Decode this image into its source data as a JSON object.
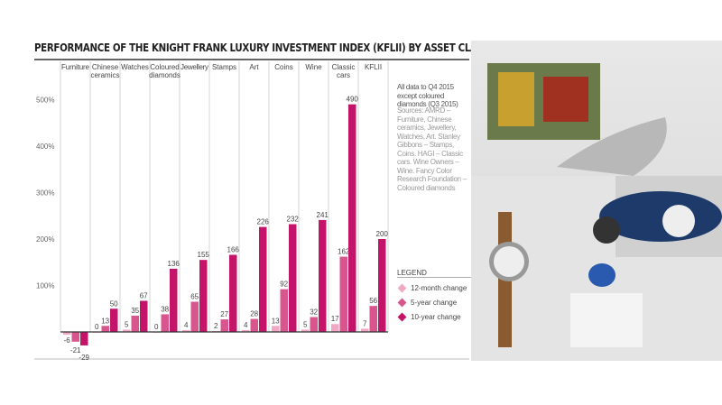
{
  "chart_data": {
    "type": "bar",
    "title": "PERFORMANCE OF THE KNIGHT FRANK LUXURY INVESTMENT INDEX (KFLII) BY ASSET CLASS",
    "categories": [
      "Furniture",
      "Chinese ceramics",
      "Watches",
      "Coloured diamonds",
      "Jewellery",
      "Stamps",
      "Art",
      "Coins",
      "Wine",
      "Classic cars",
      "KFLII"
    ],
    "series": [
      {
        "name": "12-month change",
        "color": "#f0a8c4",
        "values": [
          -6,
          0,
          5,
          0,
          4,
          2,
          4,
          13,
          5,
          17,
          7
        ]
      },
      {
        "name": "5-year change",
        "color": "#d9558e",
        "values": [
          -21,
          13,
          35,
          38,
          65,
          27,
          28,
          92,
          32,
          162,
          56
        ]
      },
      {
        "name": "10-year change",
        "color": "#c4146a",
        "values": [
          -29,
          50,
          67,
          136,
          155,
          166,
          226,
          232,
          241,
          490,
          200
        ]
      }
    ],
    "ytick_labels": [
      "100%",
      "200%",
      "300%",
      "400%",
      "500%"
    ],
    "ylim": [
      -40,
      560
    ],
    "grid": false,
    "legend_title": "LEGEND",
    "legend_position": "right"
  },
  "note": "All data to Q4 2015 except coloured diamonds (Q3 2015)",
  "sources": "Sources: AMRD – Furniture, Chinese ceramics, Jewellery, Watches, Art. Stanley Gibbons – Stamps, Coins. HAGI – Classic cars. Wine Owners – Wine. Fancy Color Research Foundation – Coloured diamonds"
}
